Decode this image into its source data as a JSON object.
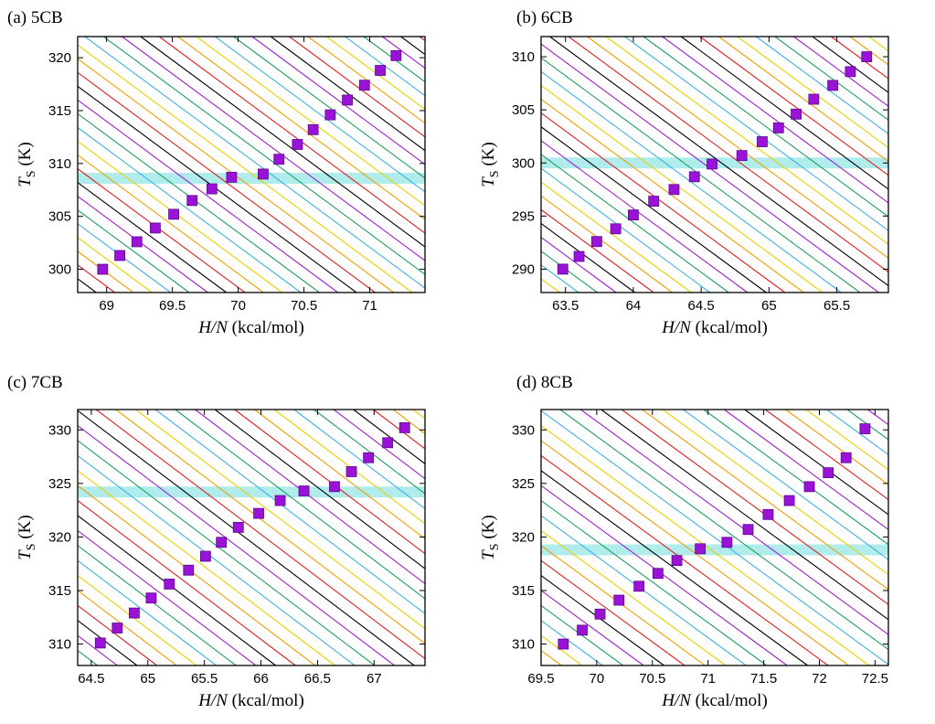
{
  "figure": {
    "colors": {
      "band": "#b0ecec",
      "marker_fill": "#9a12d8",
      "marker_edge": "#5a0a8a",
      "line_cycle": [
        "#000000",
        "#e02020",
        "#f0a000",
        "#e8d000",
        "#40b0e0",
        "#20a060",
        "#a020d0"
      ]
    }
  },
  "chart_data": [
    {
      "type": "scatter",
      "panel_label": "(a) 5CB",
      "xlabel": {
        "italic": "H/N",
        "rest": " (kcal/mol)"
      },
      "ylabel": {
        "italic": "T",
        "sub": "S",
        "rest": " (K)"
      },
      "xlim": [
        68.78,
        71.42
      ],
      "ylim": [
        297.8,
        322
      ],
      "xticks": [
        69,
        69.5,
        70,
        70.5,
        71
      ],
      "xtick_labels": [
        "69",
        "69.5",
        "70",
        "70.5",
        "71"
      ],
      "yticks": [
        300,
        305,
        310,
        315,
        320
      ],
      "ytick_labels": [
        "300",
        "305",
        "310",
        "315",
        "320"
      ],
      "band": {
        "y": 308.6
      },
      "isolines": {
        "slope": -9.2,
        "spacing": 1.3,
        "color_offset": 0
      },
      "points": {
        "x": [
          68.97,
          69.1,
          69.23,
          69.37,
          69.51,
          69.65,
          69.8,
          69.95,
          70.19,
          70.31,
          70.45,
          70.57,
          70.7,
          70.83,
          70.96,
          71.08,
          71.2
        ],
        "y": [
          300.0,
          301.3,
          302.6,
          303.9,
          305.2,
          306.5,
          307.6,
          308.7,
          309.0,
          310.4,
          311.8,
          313.2,
          314.6,
          316.0,
          317.4,
          318.8,
          320.2
        ]
      }
    },
    {
      "type": "scatter",
      "panel_label": "(b) 6CB",
      "xlabel": {
        "italic": "H/N",
        "rest": " (kcal/mol)"
      },
      "ylabel": {
        "italic": "T",
        "sub": "S",
        "rest": " (K)"
      },
      "xlim": [
        63.32,
        65.88
      ],
      "ylim": [
        287.8,
        311.9
      ],
      "xticks": [
        63.5,
        64,
        64.5,
        65,
        65.5
      ],
      "xtick_labels": [
        "63.5",
        "64",
        "64.5",
        "65",
        "65.5"
      ],
      "yticks": [
        290,
        295,
        300,
        305,
        310
      ],
      "yticklabels_note": "",
      "ytick_labels": [
        "290",
        "295",
        "300",
        "305",
        "310"
      ],
      "band": {
        "y": 300.0
      },
      "isolines": {
        "slope": -9.4,
        "spacing": 1.3,
        "color_offset": 3
      },
      "points": {
        "x": [
          63.48,
          63.6,
          63.73,
          63.87,
          64.0,
          64.15,
          64.3,
          64.45,
          64.58,
          64.8,
          64.95,
          65.07,
          65.2,
          65.33,
          65.47,
          65.6,
          65.72
        ],
        "y": [
          290.0,
          291.2,
          292.6,
          293.8,
          295.1,
          296.4,
          297.5,
          298.7,
          299.9,
          300.7,
          302.0,
          303.3,
          304.6,
          306.0,
          307.3,
          308.6,
          310.0
        ]
      }
    },
    {
      "type": "scatter",
      "panel_label": "(c) 7CB",
      "xlabel": {
        "italic": "H/N",
        "rest": " (kcal/mol)"
      },
      "ylabel": {
        "italic": "T",
        "sub": "S",
        "rest": " (K)"
      },
      "xlim": [
        64.38,
        67.45
      ],
      "ylim": [
        308.0,
        331.9
      ],
      "xticks": [
        64.5,
        65,
        65.5,
        66,
        66.5,
        67
      ],
      "xtick_labels": [
        "64.5",
        "65",
        "65.5",
        "66",
        "66.5",
        "67"
      ],
      "yticks": [
        310,
        315,
        320,
        325,
        330
      ],
      "ytick_labels": [
        "310",
        "315",
        "320",
        "325",
        "330"
      ],
      "band": {
        "y": 324.2
      },
      "isolines": {
        "slope": -8.0,
        "spacing": 1.4,
        "color_offset": 5
      },
      "points": {
        "x": [
          64.58,
          64.73,
          64.88,
          65.03,
          65.19,
          65.36,
          65.51,
          65.65,
          65.8,
          65.98,
          66.17,
          66.38,
          66.65,
          66.8,
          66.95,
          67.12,
          67.27
        ],
        "y": [
          310.1,
          311.5,
          312.9,
          314.3,
          315.6,
          316.9,
          318.2,
          319.5,
          320.9,
          322.2,
          323.4,
          324.3,
          324.7,
          326.1,
          327.4,
          328.8,
          330.2
        ]
      }
    },
    {
      "type": "scatter",
      "panel_label": "(d) 8CB",
      "xlabel": {
        "italic": "H/N",
        "rest": " (kcal/mol)"
      },
      "ylabel": {
        "italic": "T",
        "sub": "S",
        "rest": " (K)"
      },
      "xlim": [
        69.5,
        72.62
      ],
      "ylim": [
        308.0,
        331.9
      ],
      "xticks": [
        69.5,
        70,
        70.5,
        71,
        71.5,
        72,
        72.5
      ],
      "xtick_labels": [
        "69.5",
        "70",
        "70.5",
        "71",
        "71.5",
        "72",
        "72.5"
      ],
      "yticks": [
        310,
        315,
        320,
        325,
        330
      ],
      "ytick_labels": [
        "310",
        "315",
        "320",
        "325",
        "330"
      ],
      "band": {
        "y": 318.8
      },
      "isolines": {
        "slope": -7.6,
        "spacing": 1.4,
        "color_offset": 2
      },
      "points": {
        "x": [
          69.7,
          69.87,
          70.03,
          70.2,
          70.38,
          70.55,
          70.72,
          70.93,
          71.17,
          71.36,
          71.54,
          71.73,
          71.91,
          72.08,
          72.24,
          72.41
        ],
        "y": [
          310.0,
          311.3,
          312.8,
          314.1,
          315.4,
          316.6,
          317.8,
          318.9,
          319.5,
          320.7,
          322.1,
          323.4,
          324.7,
          326.0,
          327.4,
          330.1
        ]
      }
    }
  ]
}
